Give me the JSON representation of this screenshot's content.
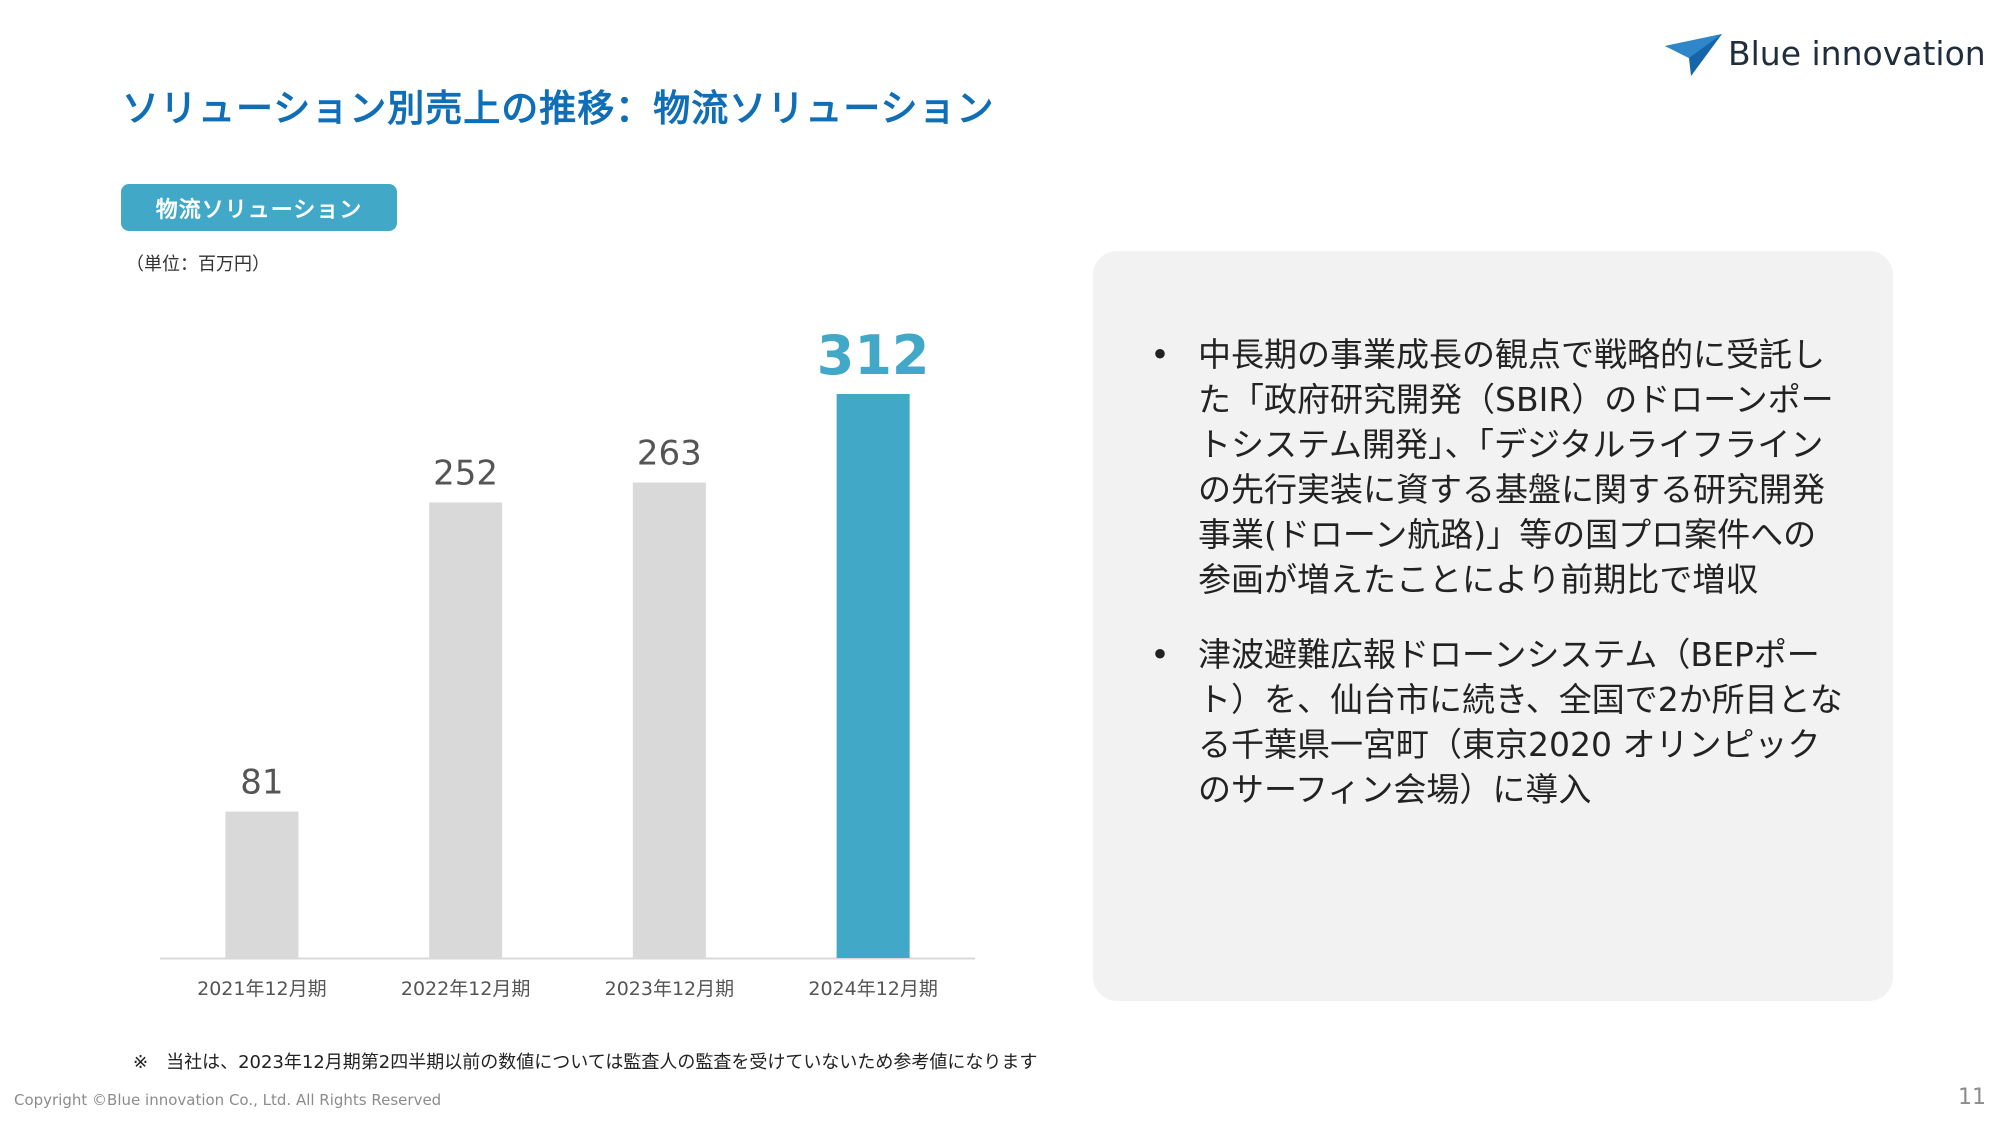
{
  "slide": {
    "title": "ソリューション別売上の推移：物流ソリューション",
    "logo_text": "Blue innovation",
    "badge_label": "物流ソリューション",
    "unit_note": "（単位：百万円）",
    "footnote": "※　当社は、2023年12月期第2四半期以前の数値については監査人の監査を受けていないため参考値になります",
    "copyright": "Copyright ©Blue innovation Co., Ltd. All Rights Reserved",
    "page_number": "11"
  },
  "bullets": [
    {
      "text": "中長期の事業成長の観点で戦略的に受託した「政府研究開発（SBIR）のドローンポートシステム開発」、「デジタルライフラインの先行実装に資する基盤に関する研究開発事業(ドローン航路)」等の国プロ案件への参画が増えたことにより前期比で増収"
    },
    {
      "text": "津波避難広報ドローンシステム（BEPポート）を、仙台市に続き、全国で2か所目となる千葉県一宮町（東京2020 オリンピックのサーフィン会場）に導入"
    }
  ],
  "bullet_symbol": "•",
  "colors": {
    "title": "#0f6eb6",
    "accent": "#41a8c7",
    "bar_gray": "#d9d9d9",
    "panel_bg": "#f2f2f2"
  },
  "chart_data": {
    "type": "bar",
    "title": "",
    "xlabel": "",
    "ylabel": "",
    "categories": [
      "2021年12月期",
      "2022年12月期",
      "2023年12月期",
      "2024年12月期"
    ],
    "values": [
      81,
      252,
      263,
      312
    ],
    "data_labels": [
      "81",
      "252",
      "263",
      "312"
    ],
    "highlight_index": 3,
    "ylim": [
      0,
      312
    ],
    "grid": false,
    "legend": "none"
  }
}
